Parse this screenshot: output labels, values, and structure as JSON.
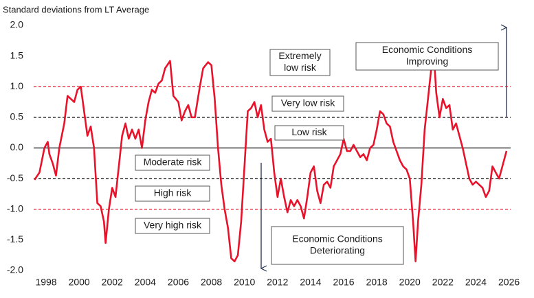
{
  "chart_data": {
    "type": "line",
    "y_axis_title": "Standard deviations from LT Average",
    "color": "#e8132b",
    "x": [
      1997.3,
      1997.6,
      1997.9,
      1998.1,
      1998.2,
      1998.4,
      1998.6,
      1998.8,
      1999.1,
      1999.3,
      1999.5,
      1999.7,
      1999.9,
      2000.1,
      2000.3,
      2000.5,
      2000.7,
      2000.9,
      2001.1,
      2001.3,
      2001.5,
      2001.6,
      2001.8,
      2002.0,
      2002.2,
      2002.4,
      2002.6,
      2002.8,
      2003.0,
      2003.2,
      2003.4,
      2003.6,
      2003.8,
      2004.0,
      2004.2,
      2004.4,
      2004.6,
      2004.8,
      2005.0,
      2005.2,
      2005.5,
      2005.7,
      2006.0,
      2006.2,
      2006.4,
      2006.6,
      2006.8,
      2007.0,
      2007.3,
      2007.5,
      2007.8,
      2008.0,
      2008.2,
      2008.4,
      2008.6,
      2008.8,
      2009.0,
      2009.2,
      2009.4,
      2009.6,
      2009.8,
      2010.0,
      2010.2,
      2010.4,
      2010.6,
      2010.8,
      2011.0,
      2011.2,
      2011.4,
      2011.6,
      2011.8,
      2012.0,
      2012.2,
      2012.4,
      2012.6,
      2012.8,
      2013.0,
      2013.2,
      2013.4,
      2013.6,
      2013.8,
      2014.0,
      2014.2,
      2014.4,
      2014.6,
      2014.8,
      2015.0,
      2015.2,
      2015.4,
      2015.6,
      2015.8,
      2016.0,
      2016.2,
      2016.4,
      2016.6,
      2016.8,
      2017.0,
      2017.2,
      2017.4,
      2017.6,
      2017.8,
      2018.0,
      2018.2,
      2018.4,
      2018.6,
      2018.8,
      2019.0,
      2019.2,
      2019.4,
      2019.6,
      2019.8,
      2020.0,
      2020.2,
      2020.35,
      2020.5,
      2020.7,
      2020.9,
      2021.1,
      2021.3,
      2021.45,
      2021.6,
      2021.8,
      2022.0,
      2022.2,
      2022.4,
      2022.6,
      2022.8,
      2023.0,
      2023.2,
      2023.4,
      2023.6,
      2023.8,
      2024.0,
      2024.2,
      2024.4,
      2024.6,
      2024.8,
      2025.0,
      2025.2,
      2025.4,
      2025.6,
      2025.85
    ],
    "values": [
      -0.52,
      -0.4,
      0.0,
      0.1,
      -0.1,
      -0.25,
      -0.45,
      0.0,
      0.4,
      0.85,
      0.8,
      0.75,
      0.95,
      1.0,
      0.6,
      0.2,
      0.35,
      0.0,
      -0.9,
      -0.95,
      -1.2,
      -1.55,
      -1.0,
      -0.65,
      -0.8,
      -0.3,
      0.2,
      0.4,
      0.15,
      0.3,
      0.15,
      0.3,
      0.0,
      0.45,
      0.75,
      0.95,
      0.9,
      1.05,
      1.1,
      1.3,
      1.42,
      0.85,
      0.75,
      0.45,
      0.6,
      0.7,
      0.5,
      0.5,
      1.0,
      1.3,
      1.4,
      1.35,
      0.8,
      0.0,
      -0.6,
      -1.0,
      -1.3,
      -1.8,
      -1.85,
      -1.75,
      -1.2,
      -0.3,
      0.6,
      0.65,
      0.75,
      0.5,
      0.7,
      0.3,
      0.1,
      0.15,
      -0.4,
      -0.8,
      -0.5,
      -0.8,
      -1.05,
      -0.85,
      -0.95,
      -0.85,
      -0.95,
      -1.15,
      -0.8,
      -0.4,
      -0.3,
      -0.7,
      -0.9,
      -0.6,
      -0.55,
      -0.65,
      -0.3,
      -0.2,
      -0.1,
      0.15,
      -0.05,
      -0.05,
      0.05,
      -0.05,
      -0.15,
      -0.1,
      -0.2,
      0.0,
      0.05,
      0.3,
      0.6,
      0.55,
      0.4,
      0.35,
      0.1,
      -0.05,
      -0.2,
      -0.3,
      -0.35,
      -0.5,
      -1.2,
      -1.85,
      -1.2,
      -0.6,
      0.3,
      0.8,
      1.3,
      1.55,
      0.9,
      0.5,
      0.8,
      0.65,
      0.7,
      0.3,
      0.4,
      0.2,
      0.0,
      -0.25,
      -0.5,
      -0.6,
      -0.55,
      -0.6,
      -0.65,
      -0.8,
      -0.7,
      -0.3,
      -0.4,
      -0.5,
      -0.3,
      -0.05
    ],
    "xlim": [
      1997.25,
      2026.1
    ],
    "xticks": [
      1998,
      2000,
      2002,
      2004,
      2006,
      2008,
      2010,
      2012,
      2014,
      2016,
      2018,
      2020,
      2022,
      2024,
      2026
    ],
    "ylim": [
      -2,
      2
    ],
    "yticks": [
      {
        "value": 2,
        "label": "2.0"
      },
      1.5,
      {
        "value": 1,
        "label": "1.0"
      },
      0.5,
      {
        "value": 0,
        "label": "0.0"
      },
      -0.5,
      {
        "value": -1,
        "label": "-1.0"
      },
      -1.5,
      {
        "value": -2,
        "label": "-2.0"
      }
    ],
    "reference_lines": [
      {
        "value": 1,
        "color": "#e8132b",
        "style": "dashed"
      },
      {
        "value": 0.5,
        "color": "#000000",
        "style": "dashed"
      },
      {
        "value": 0,
        "color": "#000000",
        "style": "solid"
      },
      {
        "value": -0.5,
        "color": "#000000",
        "style": "dashed"
      },
      {
        "value": -1,
        "color": "#e8132b",
        "style": "dashed"
      }
    ],
    "annotations": [
      [
        "Extremely",
        "low risk"
      ],
      [
        "Economic Conditions",
        "Improving"
      ],
      [
        "Very low risk"
      ],
      [
        "Low risk"
      ],
      [
        "Moderate risk"
      ],
      [
        "High risk"
      ],
      [
        "Very high risk"
      ],
      [
        "Economic Conditions",
        "Deteriorating"
      ]
    ]
  }
}
